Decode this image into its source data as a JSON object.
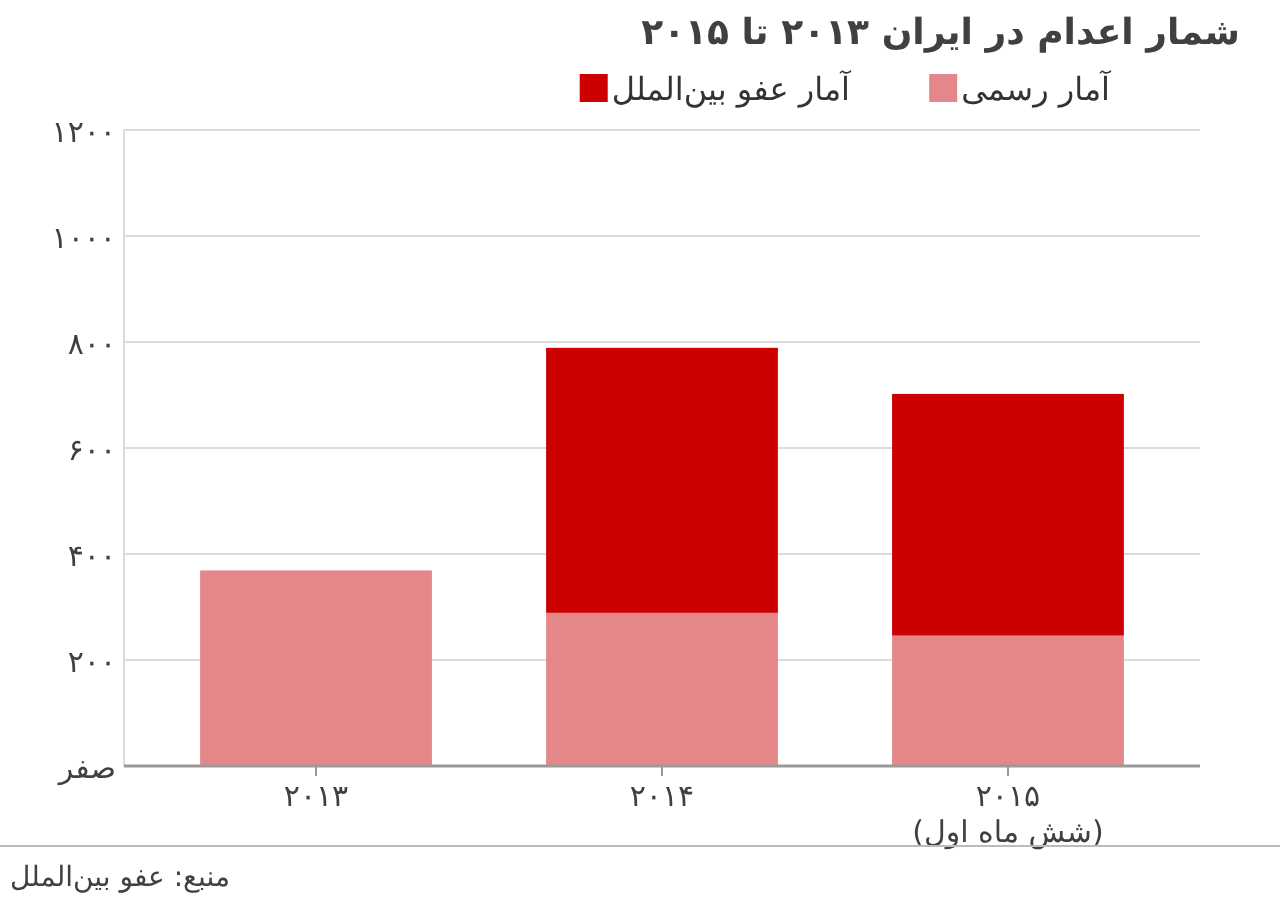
{
  "chart_data": {
    "type": "bar",
    "title": "شمار اعدام در ایران ۲۰۱۳ تا ۲۰۱۵",
    "stacked": true,
    "legend": "top",
    "grid": "y",
    "categories": [
      "۲۰۱۳",
      "۲۰۱۴",
      "۲۰۱۵\n(شش ماه اول)"
    ],
    "series": [
      {
        "name": "آمار رسمی",
        "color": "#e38788",
        "values": [
          369,
          289,
          246
        ]
      },
      {
        "name": "آمار عفو بین‌الملل",
        "color": "#cc0000",
        "values": [
          null,
          500,
          456
        ]
      }
    ],
    "ylim": [
      0,
      1200
    ],
    "yticks": [
      {
        "value": 0,
        "label": "صفر"
      },
      {
        "value": 200,
        "label": "۲۰۰"
      },
      {
        "value": 400,
        "label": "۴۰۰"
      },
      {
        "value": 600,
        "label": "۶۰۰"
      },
      {
        "value": 800,
        "label": "۸۰۰"
      },
      {
        "value": 1000,
        "label": "۱۰۰۰"
      },
      {
        "value": 1200,
        "label": "۱۲۰۰"
      }
    ],
    "annotations": [
      "منبع: عفو بین‌الملل"
    ]
  }
}
